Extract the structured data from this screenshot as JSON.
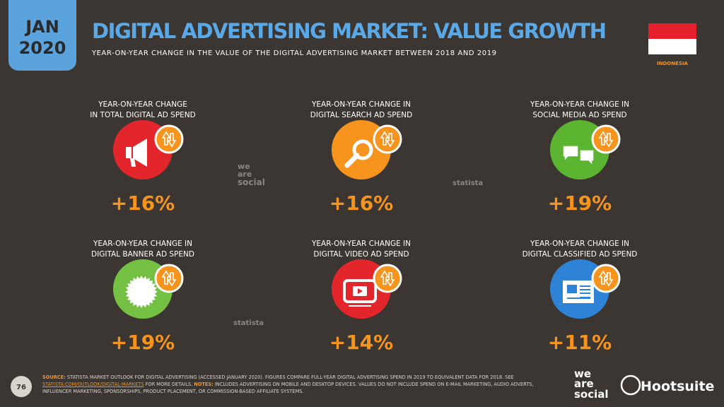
{
  "header": {
    "badge": [
      "JAN",
      "2020"
    ],
    "title": "DIGITAL ADVERTISING MARKET: VALUE GROWTH",
    "subtitle": "YEAR-ON-YEAR CHANGE IN THE VALUE OF THE DIGITAL ADVERTISING MARKET BETWEEN 2018 AND 2019",
    "country": "INDONESIA"
  },
  "items": [
    {
      "label": [
        "YEAR-ON-YEAR CHANGE",
        "IN TOTAL DIGITAL AD SPEND"
      ],
      "value": "+16%"
    },
    {
      "label": [
        "YEAR-ON-YEAR CHANGE IN",
        "DIGITAL SEARCH AD SPEND"
      ],
      "value": "+16%"
    },
    {
      "label": [
        "YEAR-ON-YEAR CHANGE IN",
        "SOCIAL MEDIA AD SPEND"
      ],
      "value": "+19%"
    },
    {
      "label": [
        "YEAR-ON-YEAR CHANGE IN",
        "DIGITAL BANNER AD SPEND"
      ],
      "value": "+19%"
    },
    {
      "label": [
        "YEAR-ON-YEAR CHANGE IN",
        "DIGITAL VIDEO AD SPEND"
      ],
      "value": "+14%"
    },
    {
      "label": [
        "YEAR-ON-YEAR CHANGE IN",
        "DIGITAL CLASSIFIED AD SPEND"
      ],
      "value": "+11%"
    }
  ],
  "watermarks": [
    "we",
    "are",
    "social",
    "statista",
    "statista"
  ],
  "footer": {
    "page": "76",
    "source_label": "SOURCE:",
    "source_text": " STATISTA MARKET OUTLOOK FOR DIGITAL ADVERTISING (ACCESSED JANUARY 2020). FIGURES COMPARE FULL-YEAR DIGITAL ADVERTISING SPEND IN 2019 TO EQUIVALENT DATA FOR 2018. SEE ",
    "link": "STATISTA.COM/OUTLOOK/DIGITAL-MARKETS",
    "source_tail": " FOR MORE DETAILS. ",
    "notes_label": "NOTES:",
    "notes_text": " INCLUDES ADVERTISING ON MOBILE AND DESKTOP DEVICES. VALUES DO NOT INCLUDE SPEND ON E-MAIL MARKETING, AUDIO ADVERTS, INFLUENCER MARKETING, SPONSORSHIPS, PRODUCT PLACEMENT, OR COMMISSION-BASED AFFILIATE SYSTEMS.",
    "brand1": [
      "we",
      "are",
      "social"
    ],
    "brand2": "Hootsuite"
  }
}
